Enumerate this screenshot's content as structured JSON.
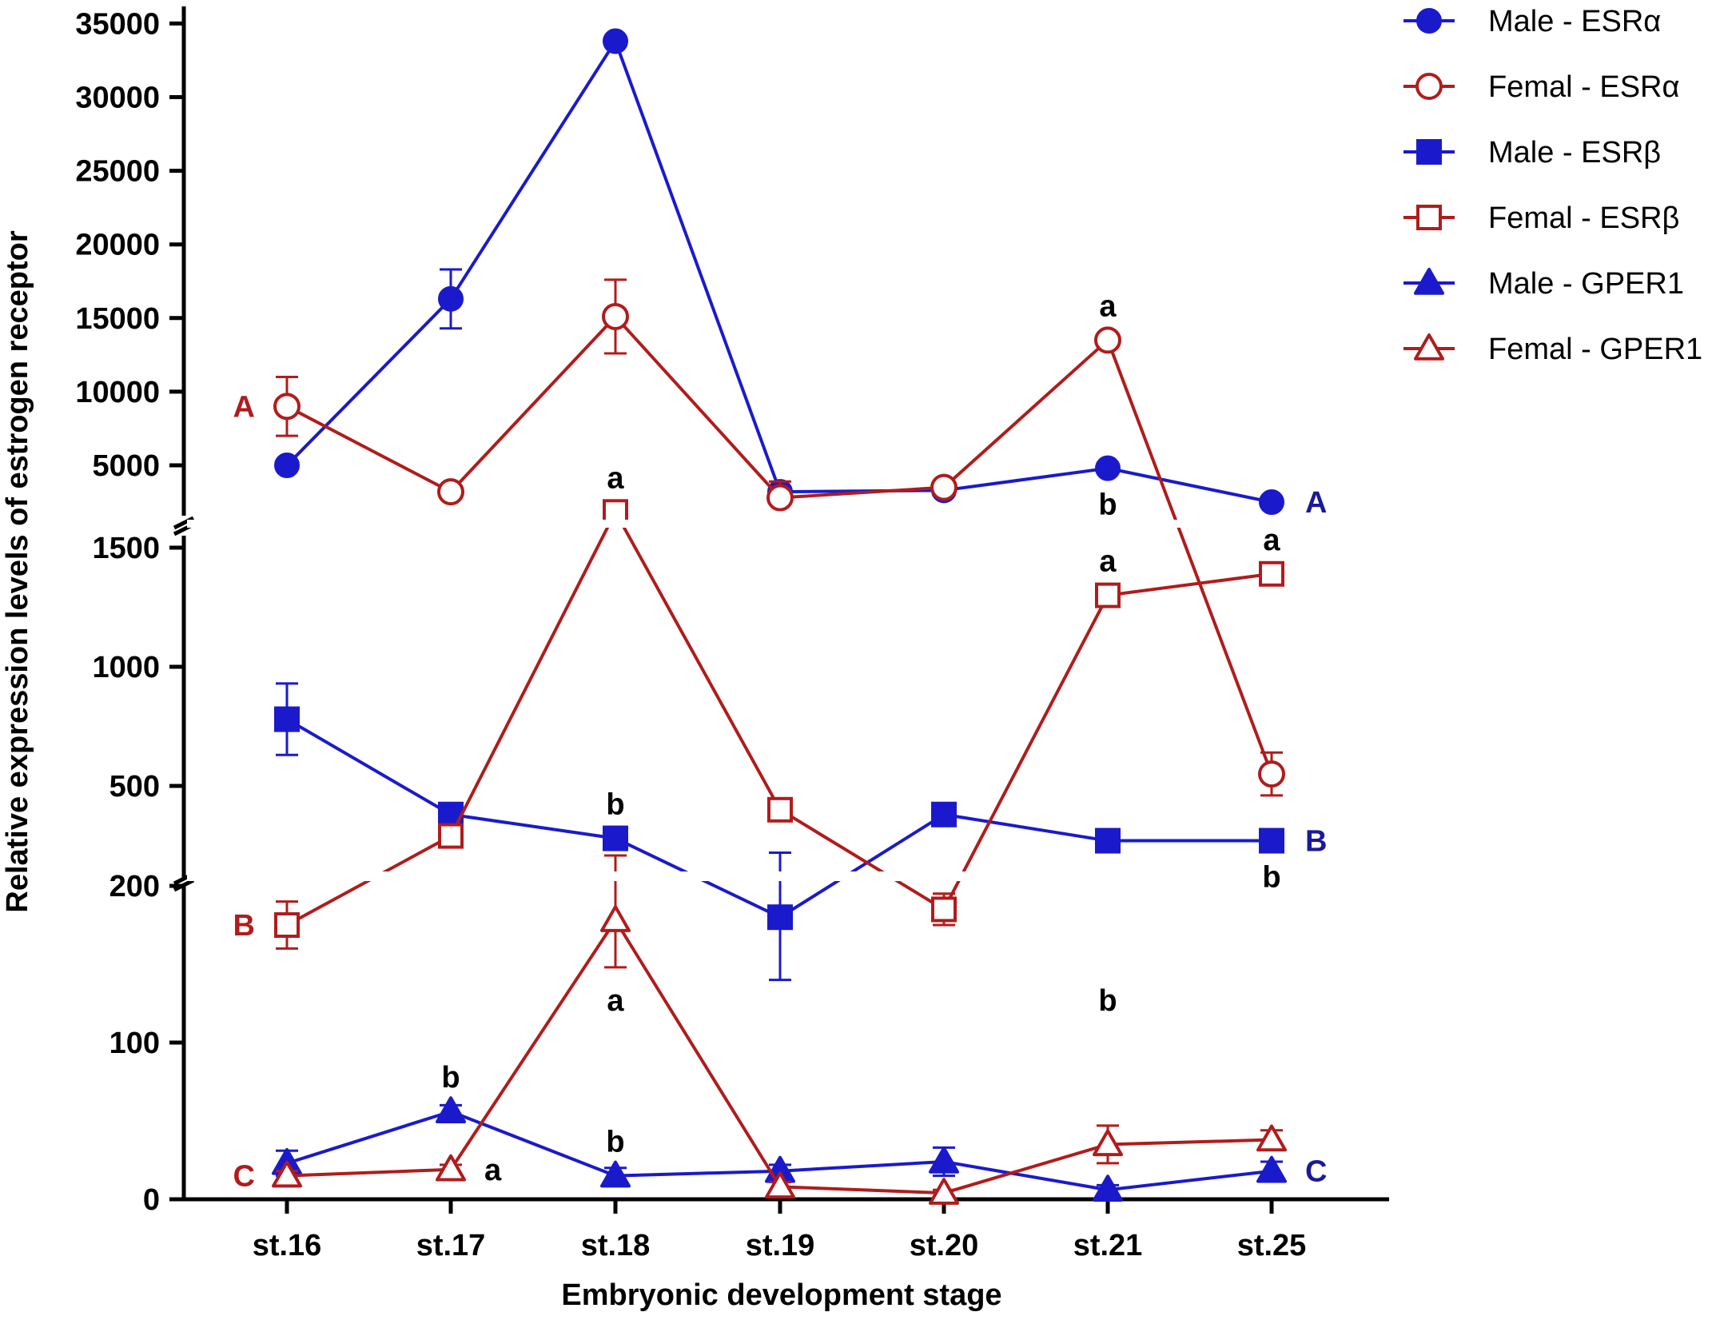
{
  "chart_data": {
    "type": "line",
    "xlabel": "Embryonic development stage",
    "ylabel": "Relative expression levels of estrogen receptor",
    "categories": [
      "st.16",
      "st.17",
      "st.18",
      "st.19",
      "st.20",
      "st.21",
      "st.25"
    ],
    "y_axis_segments": [
      {
        "name": "bottom",
        "range": [
          0,
          200
        ],
        "ticks": [
          0,
          100,
          200
        ]
      },
      {
        "name": "middle",
        "range": [
          200,
          1700
        ],
        "ticks": [
          500,
          1000,
          1500
        ]
      },
      {
        "name": "top",
        "range": [
          2300,
          35000
        ],
        "ticks": [
          5000,
          10000,
          15000,
          20000,
          25000,
          30000,
          35000
        ]
      }
    ],
    "series": [
      {
        "name": "Male - ESRα",
        "color": "#1a1acc",
        "marker": "circle",
        "filled": true,
        "values": [
          5000,
          16300,
          33800,
          3200,
          3300,
          4800,
          2500
        ],
        "errors": [
          150,
          2000,
          200,
          200,
          300,
          300,
          150
        ]
      },
      {
        "name": "Femal - ESRα",
        "color": "#b01c1c",
        "marker": "circle",
        "filled": false,
        "values": [
          9000,
          3200,
          15100,
          2800,
          3500,
          13500,
          550
        ],
        "errors": [
          2000,
          150,
          2500,
          1100,
          300,
          300,
          90
        ]
      },
      {
        "name": "Male - ESRβ",
        "color": "#1a1acc",
        "marker": "square",
        "filled": true,
        "values": [
          780,
          380,
          280,
          180,
          380,
          270,
          270
        ],
        "errors": [
          150,
          15,
          10,
          40,
          15,
          40,
          10
        ]
      },
      {
        "name": "Femal - ESRβ",
        "color": "#b01c1c",
        "marker": "square",
        "filled": false,
        "values": [
          175,
          290,
          1650,
          400,
          185,
          1300,
          1390
        ],
        "errors": [
          15,
          12,
          60,
          40,
          10,
          40,
          35
        ]
      },
      {
        "name": "Male - GPER1",
        "color": "#1a1acc",
        "marker": "triangle",
        "filled": true,
        "values": [
          23,
          56,
          15,
          18,
          24,
          6,
          18
        ],
        "errors": [
          8,
          4,
          5,
          4,
          9,
          3,
          6
        ]
      },
      {
        "name": "Femal - GPER1",
        "color": "#b01c1c",
        "marker": "triangle",
        "filled": false,
        "values": [
          15,
          19,
          178,
          8,
          4,
          35,
          38
        ],
        "errors": [
          3,
          3,
          30,
          3,
          2,
          12,
          6
        ]
      }
    ],
    "annotations": [
      {
        "text": "A",
        "x": 0,
        "value": 9000,
        "color": "#b01c1c",
        "anchor": "left"
      },
      {
        "text": "A",
        "x": 6,
        "value": 2500,
        "color": "#1a1a99",
        "anchor": "right"
      },
      {
        "text": "B",
        "x": 0,
        "value": 175,
        "color": "#b01c1c",
        "anchor": "left"
      },
      {
        "text": "B",
        "x": 6,
        "value": 270,
        "color": "#1a1a99",
        "anchor": "right"
      },
      {
        "text": "C",
        "x": 0,
        "value": 15,
        "color": "#b01c1c",
        "anchor": "left"
      },
      {
        "text": "C",
        "x": 6,
        "value": 18,
        "color": "#1a1a99",
        "anchor": "right"
      },
      {
        "text": "a",
        "x": 5,
        "value": 13500,
        "color": "#000000",
        "anchor": "above"
      },
      {
        "text": "b",
        "x": 5,
        "value": 4800,
        "color": "#000000",
        "anchor": "below"
      },
      {
        "text": "a",
        "x": 2,
        "value": 1650,
        "color": "#000000",
        "anchor": "above"
      },
      {
        "text": "a",
        "x": 5,
        "value": 1300,
        "color": "#000000",
        "anchor": "above"
      },
      {
        "text": "a",
        "x": 6,
        "value": 1390,
        "color": "#000000",
        "anchor": "above"
      },
      {
        "text": "b",
        "x": 2,
        "value": 280,
        "color": "#000000",
        "anchor": "above"
      },
      {
        "text": "b",
        "x": 6,
        "value": 270,
        "color": "#000000",
        "anchor": "below"
      },
      {
        "text": "b",
        "x": 5,
        "value": 150,
        "color": "#000000",
        "anchor": "below"
      },
      {
        "text": "a",
        "x": 2,
        "value": 150,
        "color": "#000000",
        "anchor": "below"
      },
      {
        "text": "b",
        "x": 1,
        "value": 56,
        "color": "#000000",
        "anchor": "above"
      },
      {
        "text": "b",
        "x": 2,
        "value": 15,
        "color": "#000000",
        "anchor": "above"
      },
      {
        "text": "a",
        "x": 1,
        "value": 19,
        "color": "#000000",
        "anchor": "right"
      }
    ],
    "legend": {
      "position": "top-right"
    }
  }
}
